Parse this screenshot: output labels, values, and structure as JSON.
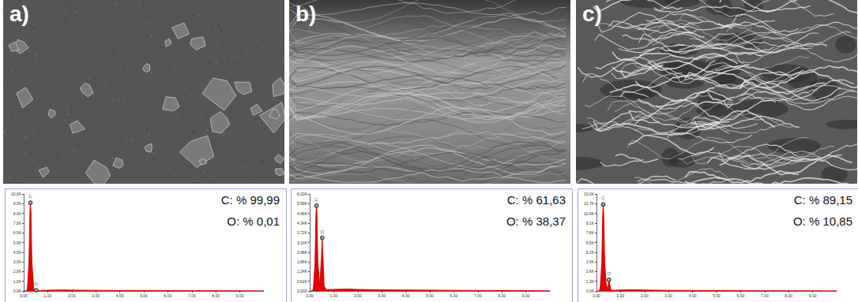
{
  "chart_data": [
    {
      "type": "line",
      "title": "a)",
      "color": "#e00000",
      "annotations": [
        "C: % 99,99",
        "O: % 0,01"
      ],
      "x": [
        0.05,
        0.15,
        0.22,
        0.26,
        0.28,
        0.3,
        0.34,
        0.42,
        0.49,
        0.52,
        0.55,
        0.6,
        0.7,
        1.0,
        1.5,
        2.0,
        3.0,
        5.0,
        7.0,
        9.0,
        10.0
      ],
      "values": [
        0,
        100,
        3000,
        8200,
        9100,
        8200,
        3000,
        150,
        60,
        80,
        60,
        50,
        40,
        80,
        100,
        90,
        60,
        40,
        30,
        20,
        10
      ],
      "peaks": [
        {
          "label": "C",
          "x": 0.28
        },
        {
          "label": "O",
          "x": 0.52
        }
      ],
      "xlim": [
        0,
        10
      ],
      "xticks": [
        {
          "value": 0,
          "label": "0.00"
        },
        {
          "value": 1,
          "label": "1.00"
        },
        {
          "value": 2,
          "label": "2.00"
        },
        {
          "value": 3,
          "label": "3.00"
        },
        {
          "value": 4,
          "label": "4.00"
        },
        {
          "value": 5,
          "label": "5.00"
        },
        {
          "value": 6,
          "label": "6.00"
        },
        {
          "value": 7,
          "label": "7.00"
        },
        {
          "value": 8,
          "label": "8.00"
        },
        {
          "value": 9,
          "label": "9.00"
        }
      ],
      "ylim": [
        0,
        10000
      ],
      "yticks": [
        {
          "value": 0,
          "label": "0.0K"
        },
        {
          "value": 1000,
          "label": "1.0K"
        },
        {
          "value": 2000,
          "label": "2.0K"
        },
        {
          "value": 3000,
          "label": "3.0K"
        },
        {
          "value": 4000,
          "label": "4.0K"
        },
        {
          "value": 5000,
          "label": "5.0K"
        },
        {
          "value": 6000,
          "label": "6.0K"
        },
        {
          "value": 7000,
          "label": "7.0K"
        },
        {
          "value": 8000,
          "label": "8.0K"
        },
        {
          "value": 9000,
          "label": "9.0K"
        },
        {
          "value": 10000,
          "label": "10.0K"
        }
      ]
    },
    {
      "type": "line",
      "title": "b)",
      "color": "#e00000",
      "annotations": [
        "C: % 61,63",
        "O: % 38,37"
      ],
      "x": [
        0.05,
        0.15,
        0.22,
        0.26,
        0.28,
        0.3,
        0.34,
        0.42,
        0.49,
        0.52,
        0.55,
        0.6,
        0.7,
        1.0,
        1.5,
        2.0,
        3.0,
        5.0,
        7.0,
        9.0,
        10.0
      ],
      "values": [
        0,
        80,
        1800,
        4900,
        5450,
        4900,
        1800,
        300,
        2200,
        3400,
        2200,
        300,
        80,
        100,
        120,
        100,
        70,
        50,
        30,
        20,
        10
      ],
      "peaks": [
        {
          "label": "C",
          "x": 0.28
        },
        {
          "label": "O",
          "x": 0.52
        }
      ],
      "xlim": [
        0,
        10
      ],
      "xticks": [
        {
          "value": 0,
          "label": "0.00"
        },
        {
          "value": 1,
          "label": "1.00"
        },
        {
          "value": 2,
          "label": "2.00"
        },
        {
          "value": 3,
          "label": "3.00"
        },
        {
          "value": 4,
          "label": "4.00"
        },
        {
          "value": 5,
          "label": "5.00"
        },
        {
          "value": 6,
          "label": "6.00"
        },
        {
          "value": 7,
          "label": "7.00"
        },
        {
          "value": 8,
          "label": "8.00"
        },
        {
          "value": 9,
          "label": "9.00"
        }
      ],
      "ylim": [
        0,
        6200
      ],
      "yticks": [
        {
          "value": 0,
          "label": "0.00K"
        },
        {
          "value": 620,
          "label": "0.62K"
        },
        {
          "value": 1240,
          "label": "1.24K"
        },
        {
          "value": 1860,
          "label": "1.86K"
        },
        {
          "value": 2480,
          "label": "2.48K"
        },
        {
          "value": 3100,
          "label": "3.10K"
        },
        {
          "value": 3720,
          "label": "3.72K"
        },
        {
          "value": 4340,
          "label": "4.34K"
        },
        {
          "value": 4960,
          "label": "4.96K"
        },
        {
          "value": 5580,
          "label": "5.58K"
        },
        {
          "value": 6200,
          "label": "6.20K"
        }
      ]
    },
    {
      "type": "line",
      "title": "c)",
      "color": "#e00000",
      "annotations": [
        "C: % 89,15",
        "O: % 10,85"
      ],
      "x": [
        0.05,
        0.15,
        0.22,
        0.26,
        0.28,
        0.3,
        0.34,
        0.42,
        0.49,
        0.52,
        0.55,
        0.6,
        0.7,
        1.0,
        1.5,
        2.0,
        3.0,
        5.0,
        7.0,
        9.0,
        10.0
      ],
      "values": [
        0,
        150,
        3800,
        10400,
        11600,
        10400,
        3800,
        250,
        900,
        1500,
        900,
        150,
        90,
        130,
        150,
        120,
        80,
        50,
        30,
        20,
        10
      ],
      "peaks": [
        {
          "label": "C",
          "x": 0.28
        },
        {
          "label": "O",
          "x": 0.52
        }
      ],
      "xlim": [
        0,
        10
      ],
      "xticks": [
        {
          "value": 0,
          "label": "0.00"
        },
        {
          "value": 1,
          "label": "1.00"
        },
        {
          "value": 2,
          "label": "2.00"
        },
        {
          "value": 3,
          "label": "3.00"
        },
        {
          "value": 4,
          "label": "4.00"
        },
        {
          "value": 5,
          "label": "5.00"
        },
        {
          "value": 6,
          "label": "6.00"
        },
        {
          "value": 7,
          "label": "7.00"
        },
        {
          "value": 8,
          "label": "8.00"
        },
        {
          "value": 9,
          "label": "9.00"
        }
      ],
      "ylim": [
        0,
        13000
      ],
      "yticks": [
        {
          "value": 0,
          "label": "0.0K"
        },
        {
          "value": 1300,
          "label": "1.3K"
        },
        {
          "value": 2600,
          "label": "2.6K"
        },
        {
          "value": 3900,
          "label": "3.9K"
        },
        {
          "value": 5200,
          "label": "5.2K"
        },
        {
          "value": 6500,
          "label": "6.5K"
        },
        {
          "value": 7800,
          "label": "7.8K"
        },
        {
          "value": 9100,
          "label": "9.1K"
        },
        {
          "value": 10400,
          "label": "10.4K"
        },
        {
          "value": 11700,
          "label": "11.7K"
        },
        {
          "value": 13000,
          "label": "13.0K"
        }
      ]
    }
  ]
}
